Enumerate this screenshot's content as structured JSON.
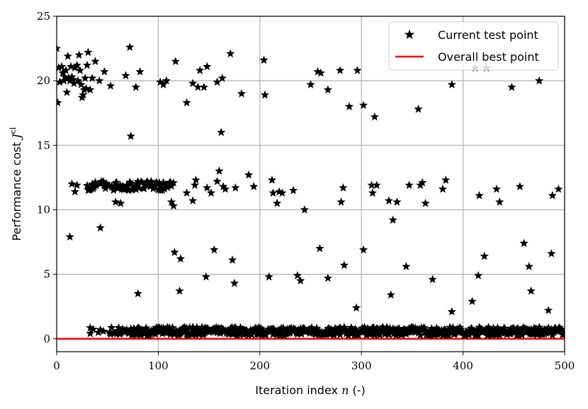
{
  "chart_data": {
    "type": "scatter",
    "xlabel": "Iteration index",
    "xlabel_var": "n",
    "xlabel_unit": "(-)",
    "ylabel": "Performance cost",
    "ylabel_var": "J",
    "ylabel_sup": "cl",
    "xlim": [
      0,
      500
    ],
    "ylim": [
      -1,
      25
    ],
    "xticks": [
      0,
      100,
      200,
      300,
      400,
      500
    ],
    "yticks": [
      0,
      5,
      10,
      15,
      20,
      25
    ],
    "grid": true,
    "legend_position": "top-right",
    "series": [
      {
        "name": "Current test point",
        "marker": "star",
        "color": "#000000",
        "points": [
          [
            0,
            22.5
          ],
          [
            1,
            18.3
          ],
          [
            2,
            21.0
          ],
          [
            3,
            19.9
          ],
          [
            5,
            21.1
          ],
          [
            6,
            20.6
          ],
          [
            7,
            20.0
          ],
          [
            8,
            20.3
          ],
          [
            9,
            20.8
          ],
          [
            10,
            19.1
          ],
          [
            11,
            21.9
          ],
          [
            12,
            20.2
          ],
          [
            13,
            20.0
          ],
          [
            14,
            21.1
          ],
          [
            15,
            20.3
          ],
          [
            16,
            20.1
          ],
          [
            17,
            19.8
          ],
          [
            18,
            21.0
          ],
          [
            20,
            21.2
          ],
          [
            21,
            20.0
          ],
          [
            22,
            22.0
          ],
          [
            23,
            20.8
          ],
          [
            24,
            19.7
          ],
          [
            25,
            18.7
          ],
          [
            26,
            18.9
          ],
          [
            27,
            19.3
          ],
          [
            28,
            20.2
          ],
          [
            29,
            19.4
          ],
          [
            30,
            21.2
          ],
          [
            31,
            22.2
          ],
          [
            33,
            19.3
          ],
          [
            35,
            20.2
          ],
          [
            38,
            21.5
          ],
          [
            42,
            20.0
          ],
          [
            47,
            20.7
          ],
          [
            53,
            19.6
          ],
          [
            68,
            20.4
          ],
          [
            72,
            22.6
          ],
          [
            73,
            15.7
          ],
          [
            78,
            19.5
          ],
          [
            82,
            20.7
          ],
          [
            102,
            19.9
          ],
          [
            105,
            19.7
          ],
          [
            108,
            20.0
          ],
          [
            117,
            21.5
          ],
          [
            128,
            18.3
          ],
          [
            134,
            19.8
          ],
          [
            139,
            19.5
          ],
          [
            141,
            20.8
          ],
          [
            145,
            19.5
          ],
          [
            148,
            21.1
          ],
          [
            158,
            19.9
          ],
          [
            163,
            20.2
          ],
          [
            162,
            16.0
          ],
          [
            171,
            22.1
          ],
          [
            182,
            19.0
          ],
          [
            204,
            21.6
          ],
          [
            205,
            18.9
          ],
          [
            250,
            19.7
          ],
          [
            257,
            20.7
          ],
          [
            260,
            20.6
          ],
          [
            267,
            19.3
          ],
          [
            279,
            20.8
          ],
          [
            288,
            18.0
          ],
          [
            296,
            20.8
          ],
          [
            302,
            18.1
          ],
          [
            313,
            17.2
          ],
          [
            356,
            17.8
          ],
          [
            389,
            19.7
          ],
          [
            412,
            21.0
          ],
          [
            423,
            21.0
          ],
          [
            448,
            19.5
          ],
          [
            475,
            20.0
          ],
          [
            13,
            7.9
          ],
          [
            15,
            12.0
          ],
          [
            18,
            11.4
          ],
          [
            20,
            11.9
          ],
          [
            43,
            8.6
          ],
          [
            58,
            10.6
          ],
          [
            63,
            10.5
          ],
          [
            75,
            11.6
          ],
          [
            80,
            3.5
          ],
          [
            113,
            10.6
          ],
          [
            115,
            10.3
          ],
          [
            116,
            6.7
          ],
          [
            121,
            3.7
          ],
          [
            122,
            6.2
          ],
          [
            128,
            11.3
          ],
          [
            134,
            10.7
          ],
          [
            136,
            11.9
          ],
          [
            137,
            12.3
          ],
          [
            147,
            4.8
          ],
          [
            148,
            11.7
          ],
          [
            152,
            11.3
          ],
          [
            155,
            6.9
          ],
          [
            158,
            12.2
          ],
          [
            160,
            13.0
          ],
          [
            164,
            11.8
          ],
          [
            166,
            11.6
          ],
          [
            173,
            6.1
          ],
          [
            175,
            4.3
          ],
          [
            176,
            11.7
          ],
          [
            189,
            12.7
          ],
          [
            194,
            11.8
          ],
          [
            209,
            4.8
          ],
          [
            212,
            12.3
          ],
          [
            213,
            11.3
          ],
          [
            217,
            10.5
          ],
          [
            219,
            11.4
          ],
          [
            222,
            11.3
          ],
          [
            233,
            11.5
          ],
          [
            237,
            4.9
          ],
          [
            240,
            4.5
          ],
          [
            244,
            10.0
          ],
          [
            259,
            7.0
          ],
          [
            267,
            4.7
          ],
          [
            280,
            10.6
          ],
          [
            282,
            11.7
          ],
          [
            283,
            5.7
          ],
          [
            295,
            2.4
          ],
          [
            302,
            6.9
          ],
          [
            310,
            11.9
          ],
          [
            311,
            11.3
          ],
          [
            315,
            11.9
          ],
          [
            327,
            10.7
          ],
          [
            329,
            3.4
          ],
          [
            331,
            9.2
          ],
          [
            335,
            10.6
          ],
          [
            344,
            5.6
          ],
          [
            347,
            11.9
          ],
          [
            358,
            11.9
          ],
          [
            360,
            12.1
          ],
          [
            363,
            10.5
          ],
          [
            370,
            4.6
          ],
          [
            380,
            11.6
          ],
          [
            383,
            12.3
          ],
          [
            389,
            2.1
          ],
          [
            409,
            2.9
          ],
          [
            415,
            4.9
          ],
          [
            416,
            11.1
          ],
          [
            421,
            6.4
          ],
          [
            433,
            11.6
          ],
          [
            436,
            10.6
          ],
          [
            456,
            11.8
          ],
          [
            460,
            7.4
          ],
          [
            465,
            5.6
          ],
          [
            467,
            3.7
          ],
          [
            484,
            2.2
          ],
          [
            487,
            6.6
          ],
          [
            488,
            11.1
          ],
          [
            494,
            11.6
          ]
        ]
      },
      {
        "name": "Overall best point",
        "marker": "line",
        "color": "#ff0000",
        "value": 0.0
      }
    ]
  }
}
